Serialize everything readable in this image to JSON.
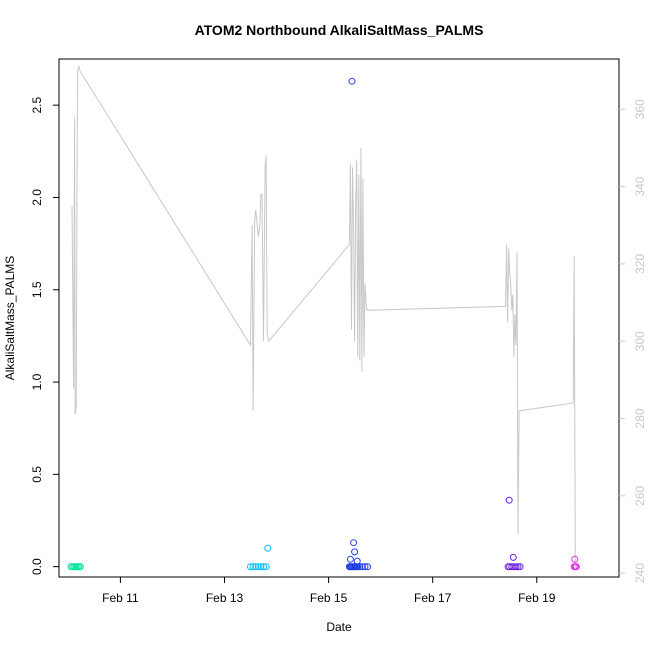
{
  "chart_data": {
    "type": "scatter",
    "title": "ATOM2 Northbound AlkaliSaltMass_PALMS",
    "xlabel": "Date",
    "ylabel": "AlkaliSaltMass_PALMS",
    "xlim": [
      9.82,
      20.58
    ],
    "ylim": [
      -0.056,
      2.75
    ],
    "x_ticks": [
      11,
      13,
      15,
      17,
      19
    ],
    "x_tick_labels": [
      "Feb 11",
      "Feb 13",
      "Feb 15",
      "Feb 17",
      "Feb 19"
    ],
    "y_ticks": [
      0.0,
      0.5,
      1.0,
      1.5,
      2.0,
      2.5
    ],
    "y_tick_labels": [
      "0.0",
      "0.5",
      "1.0",
      "1.5",
      "2.0",
      "2.5"
    ],
    "y2_ticks": [
      240,
      260,
      280,
      300,
      320,
      340,
      360
    ],
    "y2_tick_labels": [
      "240",
      "260",
      "280",
      "300",
      "320",
      "340",
      "360"
    ],
    "y2lim": [
      239,
      373
    ],
    "grid": false,
    "legend": "none",
    "line_color": "#c8c8c8",
    "line_series": {
      "x": [
        10.07,
        10.1,
        10.12,
        10.13,
        10.15,
        10.17,
        10.18,
        10.2,
        10.22,
        13.5,
        13.53,
        13.55,
        13.58,
        13.6,
        13.63,
        13.65,
        13.68,
        13.7,
        13.72,
        13.75,
        13.78,
        13.8,
        13.82,
        13.85,
        15.4,
        15.42,
        15.44,
        15.46,
        15.48,
        15.5,
        15.52,
        15.54,
        15.56,
        15.58,
        15.6,
        15.62,
        15.64,
        15.66,
        15.68,
        15.7,
        15.72,
        15.74,
        18.4,
        18.42,
        18.44,
        18.46,
        18.48,
        18.5,
        18.52,
        18.54,
        18.56,
        18.58,
        18.6,
        18.62,
        18.64,
        18.66,
        18.68,
        19.7,
        19.72,
        19.74
      ],
      "values": [
        335,
        288,
        358,
        281,
        283,
        352,
        370,
        371,
        370,
        299,
        330,
        282,
        331,
        334,
        330,
        327,
        330,
        338,
        338,
        300,
        345,
        348,
        302,
        300,
        325,
        346,
        303,
        345,
        330,
        300,
        336,
        347,
        296,
        343,
        295,
        350,
        292,
        342,
        296,
        315,
        310,
        308,
        309,
        325,
        305,
        324,
        318,
        315,
        308,
        312,
        296,
        307,
        299,
        323,
        250,
        282,
        282,
        284,
        322,
        241
      ]
    },
    "scatter_points": {
      "x": [
        10.05,
        10.08,
        10.11,
        10.14,
        10.17,
        10.2,
        10.23,
        13.5,
        13.55,
        13.6,
        13.65,
        13.7,
        13.75,
        13.8,
        13.83,
        15.4,
        15.42,
        15.44,
        15.46,
        15.48,
        15.5,
        15.52,
        15.54,
        15.56,
        15.6,
        15.65,
        15.7,
        15.75,
        15.45,
        15.5,
        15.55,
        15.42,
        15.48,
        18.45,
        18.48,
        18.52,
        18.56,
        18.6,
        18.64,
        18.68,
        18.55,
        18.47,
        19.72,
        19.74,
        19.76,
        19.73
      ],
      "values": [
        0.0,
        0.0,
        0.0,
        0.0,
        0.0,
        0.0,
        0.0,
        0.0,
        0.0,
        0.0,
        0.0,
        0.0,
        0.0,
        0.0,
        0.1,
        0.0,
        0.0,
        0.0,
        0.0,
        0.0,
        0.0,
        0.0,
        0.0,
        0.0,
        0.0,
        0.0,
        0.0,
        0.0,
        2.63,
        0.08,
        0.03,
        0.04,
        0.13,
        0.0,
        0.0,
        0.0,
        0.0,
        0.0,
        0.0,
        0.0,
        0.05,
        0.36,
        0.0,
        0.0,
        0.0,
        0.04
      ],
      "colors": [
        "#00e5a0",
        "#00e5a0",
        "#00e5a0",
        "#00e5a0",
        "#00e5a0",
        "#00e5a0",
        "#00e5a0",
        "#00bfff",
        "#00bfff",
        "#00bfff",
        "#00bfff",
        "#00bfff",
        "#00bfff",
        "#00bfff",
        "#00bfff",
        "#1f3fdf",
        "#1f3fdf",
        "#1f3fdf",
        "#1f3fdf",
        "#1f3fdf",
        "#1f3fdf",
        "#1f3fdf",
        "#1f3fdf",
        "#1f3fdf",
        "#1f3fdf",
        "#1f3fdf",
        "#1f3fdf",
        "#1f3fdf",
        "#2a3fe8",
        "#2a3fe8",
        "#2a3fe8",
        "#2a3fe8",
        "#2a3fe8",
        "#6a1fe0",
        "#6a1fe0",
        "#6a1fe0",
        "#6a1fe0",
        "#6a1fe0",
        "#6a1fe0",
        "#6a1fe0",
        "#6a1fe0",
        "#6a1fe0",
        "#e030e0",
        "#e030e0",
        "#e030e0",
        "#e030e0"
      ]
    }
  }
}
